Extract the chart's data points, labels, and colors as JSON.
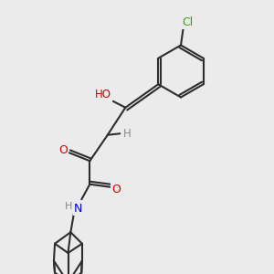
{
  "background_color": "#ebebeb",
  "bond_color": "#2d2d2d",
  "atom_colors": {
    "O": "#cc0000",
    "N": "#0000cc",
    "Cl": "#33aa00",
    "H": "#888888",
    "C": "#2d2d2d"
  },
  "figsize": [
    3.0,
    3.0
  ],
  "dpi": 100,
  "xlim": [
    0,
    10
  ],
  "ylim": [
    0,
    10
  ]
}
